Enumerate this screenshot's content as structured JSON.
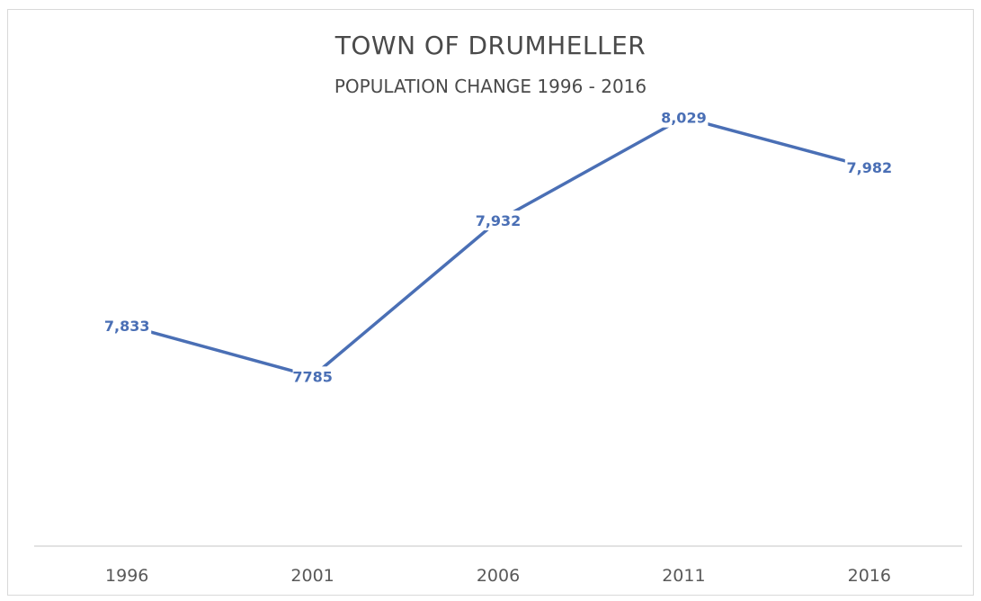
{
  "chart_data": {
    "type": "line",
    "title": "TOWN OF DRUMHELLER",
    "subtitle": "POPULATION CHANGE 1996 - 2016",
    "categories": [
      "1996",
      "2001",
      "2006",
      "2011",
      "2016"
    ],
    "series": [
      {
        "values": [
          7833,
          7785,
          7932,
          8029,
          7982
        ],
        "data_labels": [
          "7,833",
          "7785",
          "7,932",
          "8,029",
          "7,982"
        ],
        "color": "#4a6fb5"
      }
    ],
    "xlabel": "",
    "ylabel": "",
    "y_axis_visible": false,
    "ylim": [
      7625,
      8055
    ],
    "grid": false,
    "legend": "none"
  }
}
